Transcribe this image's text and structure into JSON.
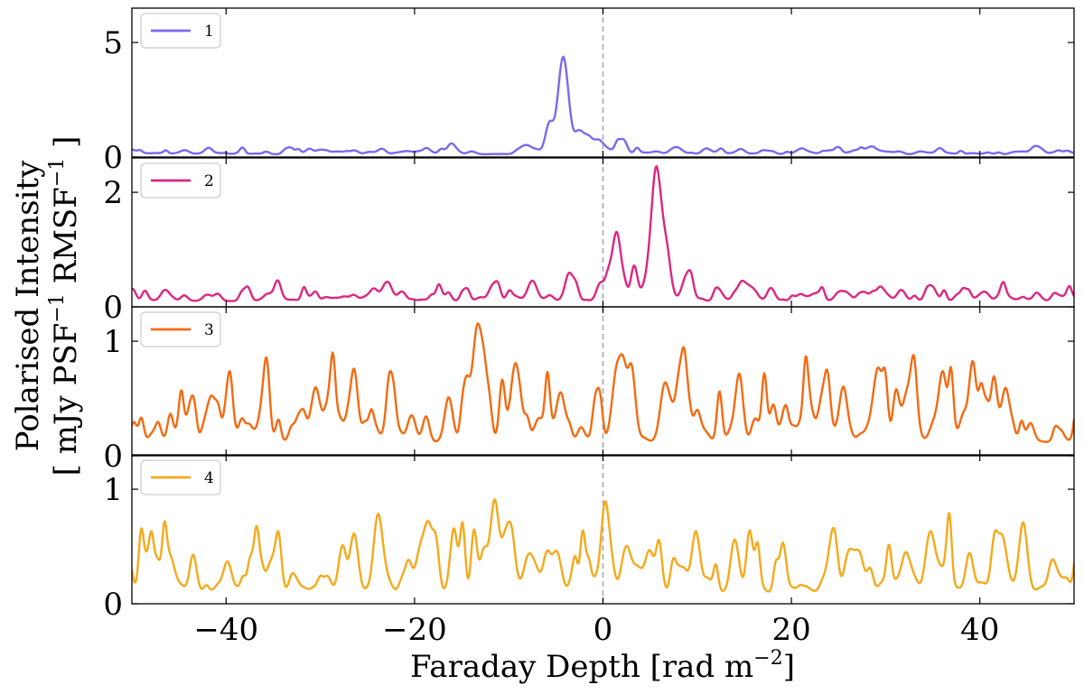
{
  "chart_data": {
    "type": "line",
    "xlabel": "Faraday Depth [rad m",
    "xlabel_sup": "−2",
    "xlabel_end": "]",
    "ylabel_line1": "Polarised Intensity",
    "ylabel_line2": {
      "a": "[ mJy PSF",
      "sup1": "−1",
      "b": " RMSF",
      "sup2": "−1",
      "c": " ]"
    },
    "xlim": [
      -50,
      50
    ],
    "x_ticks": [
      -40,
      -20,
      0,
      20,
      40
    ],
    "x_tick_labels": [
      "−40",
      "−20",
      "0",
      "20",
      "40"
    ],
    "zero_line": 0,
    "panels": [
      {
        "legend": "1",
        "color": "#7b68ee",
        "ylim": [
          0,
          6.5
        ],
        "y_ticks": [
          0,
          5
        ],
        "y_tick_labels": [
          "0",
          "5"
        ],
        "baseline": 0.12,
        "noise": 0.28,
        "seed": 11,
        "features": [
          {
            "x": -4.2,
            "a": 4.1,
            "w": 0.55
          },
          {
            "x": -5.7,
            "a": 1.2,
            "w": 0.4
          },
          {
            "x": -2.2,
            "a": 0.8,
            "w": 0.7
          },
          {
            "x": -0.5,
            "a": 0.55,
            "w": 0.5
          },
          {
            "x": -8.0,
            "a": 0.35,
            "w": 0.6
          },
          {
            "x": 2.0,
            "a": 0.5,
            "w": 0.5
          }
        ]
      },
      {
        "legend": "2",
        "color": "#dc2682",
        "ylim": [
          0,
          2.6
        ],
        "y_ticks": [
          0,
          2
        ],
        "y_tick_labels": [
          "0",
          "2"
        ],
        "baseline": 0.1,
        "noise": 0.28,
        "seed": 23,
        "features": [
          {
            "x": 5.6,
            "a": 1.95,
            "w": 0.6
          },
          {
            "x": 1.5,
            "a": 1.1,
            "w": 0.45
          },
          {
            "x": 3.3,
            "a": 0.6,
            "w": 0.35
          },
          {
            "x": 6.7,
            "a": 0.65,
            "w": 0.5
          },
          {
            "x": -3.5,
            "a": 0.35,
            "w": 0.5
          },
          {
            "x": -7.5,
            "a": 0.35,
            "w": 0.5
          },
          {
            "x": 9.0,
            "a": 0.4,
            "w": 0.5
          },
          {
            "x": -0.3,
            "a": 0.3,
            "w": 0.4
          }
        ]
      },
      {
        "legend": "3",
        "color": "#f46a10",
        "ylim": [
          0,
          1.3
        ],
        "y_ticks": [
          0,
          1
        ],
        "y_tick_labels": [
          "0",
          "1"
        ],
        "baseline": 0.12,
        "noise": 0.6,
        "seed": 37,
        "features": [
          {
            "x": 3.0,
            "a": 0.45,
            "w": 0.45
          },
          {
            "x": -13.5,
            "a": 0.4,
            "w": 0.5
          },
          {
            "x": 1.2,
            "a": 0.3,
            "w": 0.4
          },
          {
            "x": -9.5,
            "a": 0.3,
            "w": 0.4
          },
          {
            "x": 32.5,
            "a": 0.2,
            "w": 0.6
          }
        ]
      },
      {
        "legend": "4",
        "color": "#f5a91a",
        "ylim": [
          0,
          1.3
        ],
        "y_ticks": [
          0,
          1
        ],
        "y_tick_labels": [
          "0",
          "1"
        ],
        "baseline": 0.1,
        "noise": 0.6,
        "seed": 53,
        "features": [
          {
            "x": -11.5,
            "a": 0.8,
            "w": 0.45
          },
          {
            "x": 0.2,
            "a": 0.72,
            "w": 0.4
          },
          {
            "x": 44.5,
            "a": 0.3,
            "w": 0.5
          },
          {
            "x": -23.5,
            "a": 0.25,
            "w": 0.45
          },
          {
            "x": 2.5,
            "a": 0.35,
            "w": 0.45
          },
          {
            "x": 5.0,
            "a": 0.3,
            "w": 0.45
          },
          {
            "x": -48.5,
            "a": 0.2,
            "w": 0.5
          }
        ]
      }
    ]
  }
}
